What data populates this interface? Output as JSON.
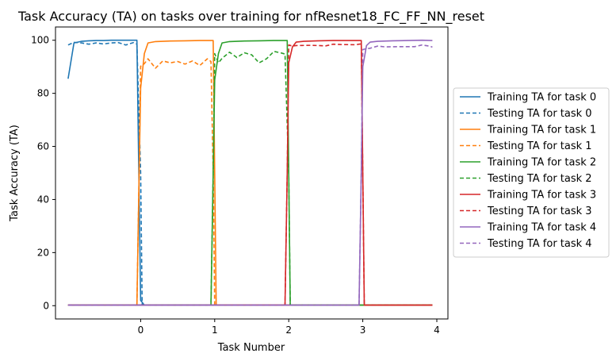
{
  "chart_data": {
    "type": "line",
    "title": "Task Accuracy (TA) on tasks over training for nfResnet18_FC_FF_NN_reset",
    "xlabel": "Task Number",
    "ylabel": "Task Accuracy (TA)",
    "xlim": [
      -1.15,
      4.15
    ],
    "ylim": [
      -5,
      105
    ],
    "xticks": [
      0,
      1,
      2,
      3,
      4
    ],
    "yticks": [
      0,
      20,
      40,
      60,
      80,
      100
    ],
    "grid": false,
    "legend_position": "right-outside",
    "series": [
      {
        "name": "Training TA for task 0",
        "color": "#1f77b4",
        "style": "solid",
        "x": [
          -0.98,
          -0.9,
          -0.8,
          -0.7,
          -0.6,
          -0.5,
          -0.4,
          -0.3,
          -0.2,
          -0.1,
          -0.05,
          0.0,
          0.05,
          1.0,
          2.0,
          3.0,
          3.94
        ],
        "y": [
          85.5,
          99.0,
          99.6,
          99.8,
          99.9,
          99.9,
          100,
          100,
          100,
          100,
          100,
          2,
          0.2,
          0.2,
          0.2,
          0.2,
          0.2
        ]
      },
      {
        "name": "Testing TA for task 0",
        "color": "#1f77b4",
        "style": "dashed",
        "x": [
          -0.98,
          -0.9,
          -0.8,
          -0.7,
          -0.6,
          -0.5,
          -0.4,
          -0.3,
          -0.2,
          -0.1,
          -0.05,
          0.0,
          0.02,
          0.05,
          1.0,
          2.0,
          3.0,
          3.94
        ],
        "y": [
          98.2,
          99.2,
          99.0,
          98.5,
          99.0,
          98.6,
          99.0,
          99.1,
          98.2,
          99.1,
          98.5,
          50,
          0.5,
          0.2,
          0.2,
          0.2,
          0.2,
          0.2
        ]
      },
      {
        "name": "Training TA for task 1",
        "color": "#ff7f0e",
        "style": "solid",
        "x": [
          -0.98,
          -0.05,
          -0.02,
          0.0,
          0.05,
          0.1,
          0.2,
          0.4,
          0.6,
          0.8,
          0.95,
          0.98,
          1.0,
          1.02,
          1.05,
          2.0,
          3.0,
          3.94
        ],
        "y": [
          0.2,
          0.2,
          50,
          82,
          95,
          99.0,
          99.5,
          99.7,
          99.8,
          99.9,
          99.9,
          99.9,
          50,
          0.2,
          0.2,
          0.2,
          0.2,
          0.2
        ]
      },
      {
        "name": "Testing TA for task 1",
        "color": "#ff7f0e",
        "style": "dashed",
        "x": [
          -0.98,
          -0.05,
          -0.02,
          0.0,
          0.05,
          0.1,
          0.2,
          0.3,
          0.4,
          0.5,
          0.6,
          0.7,
          0.8,
          0.9,
          0.95,
          0.98,
          1.0,
          1.02,
          1.05,
          2.0,
          3.0,
          3.94
        ],
        "y": [
          0.2,
          0.2,
          50,
          90.2,
          91.2,
          93.0,
          89.5,
          92.2,
          91.5,
          92.0,
          91.0,
          92.2,
          90.5,
          93.0,
          92.0,
          50,
          0.2,
          0.2,
          0.2,
          0.2,
          0.2,
          0.2
        ]
      },
      {
        "name": "Training TA for task 2",
        "color": "#2ca02c",
        "style": "solid",
        "x": [
          -0.98,
          0.95,
          0.98,
          1.0,
          1.05,
          1.1,
          1.2,
          1.4,
          1.6,
          1.8,
          1.95,
          1.98,
          2.0,
          2.02,
          2.05,
          3.0,
          3.94
        ],
        "y": [
          0.2,
          0.2,
          50,
          85,
          95,
          99.0,
          99.5,
          99.7,
          99.8,
          99.9,
          99.9,
          99.9,
          50,
          0.2,
          0.2,
          0.2,
          0.2
        ]
      },
      {
        "name": "Testing TA for task 2",
        "color": "#2ca02c",
        "style": "dashed",
        "x": [
          -0.98,
          0.95,
          0.98,
          1.0,
          1.05,
          1.1,
          1.2,
          1.3,
          1.4,
          1.5,
          1.6,
          1.7,
          1.8,
          1.9,
          1.95,
          2.0,
          2.02,
          2.05,
          3.0,
          3.94
        ],
        "y": [
          0.2,
          0.2,
          50,
          95.0,
          91.5,
          93.2,
          95.5,
          93.5,
          95.3,
          94.5,
          91.5,
          93.0,
          95.8,
          95.2,
          94.8,
          50,
          0.5,
          0.2,
          0.2,
          0.2
        ]
      },
      {
        "name": "Training TA for task 3",
        "color": "#d62728",
        "style": "solid",
        "x": [
          -0.98,
          1.95,
          1.98,
          2.0,
          2.05,
          2.1,
          2.2,
          2.4,
          2.6,
          2.8,
          2.95,
          2.98,
          3.0,
          3.02,
          3.05,
          3.94
        ],
        "y": [
          0.2,
          0.2,
          50,
          91.5,
          97.5,
          99.3,
          99.6,
          99.8,
          99.9,
          99.9,
          99.9,
          99.9,
          50,
          0.2,
          0.2,
          0.2
        ]
      },
      {
        "name": "Testing TA for task 3",
        "color": "#d62728",
        "style": "dashed",
        "x": [
          -0.98,
          1.95,
          1.98,
          2.0,
          2.05,
          2.1,
          2.3,
          2.5,
          2.6,
          2.7,
          2.9,
          2.95,
          2.98,
          3.0,
          3.02,
          3.05,
          3.94
        ],
        "y": [
          0.2,
          0.2,
          50,
          98.2,
          97.8,
          98.0,
          98.1,
          97.9,
          98.5,
          98.4,
          98.3,
          98.5,
          98.6,
          50,
          0.2,
          0.2,
          0.2
        ]
      },
      {
        "name": "Training TA for task 4",
        "color": "#9467bd",
        "style": "solid",
        "x": [
          -0.98,
          2.95,
          2.98,
          3.0,
          3.05,
          3.1,
          3.2,
          3.4,
          3.6,
          3.8,
          3.94
        ],
        "y": [
          0.2,
          0.2,
          50,
          90,
          98.0,
          99.3,
          99.6,
          99.8,
          99.9,
          100,
          99.9
        ]
      },
      {
        "name": "Testing TA for task 4",
        "color": "#9467bd",
        "style": "dashed",
        "x": [
          -0.98,
          2.95,
          2.98,
          3.0,
          3.05,
          3.1,
          3.2,
          3.3,
          3.5,
          3.7,
          3.8,
          3.9,
          3.94
        ],
        "y": [
          0.2,
          0.2,
          50,
          96.5,
          96.8,
          97.0,
          97.8,
          97.5,
          97.6,
          97.6,
          98.2,
          97.8,
          97.4
        ]
      }
    ]
  }
}
